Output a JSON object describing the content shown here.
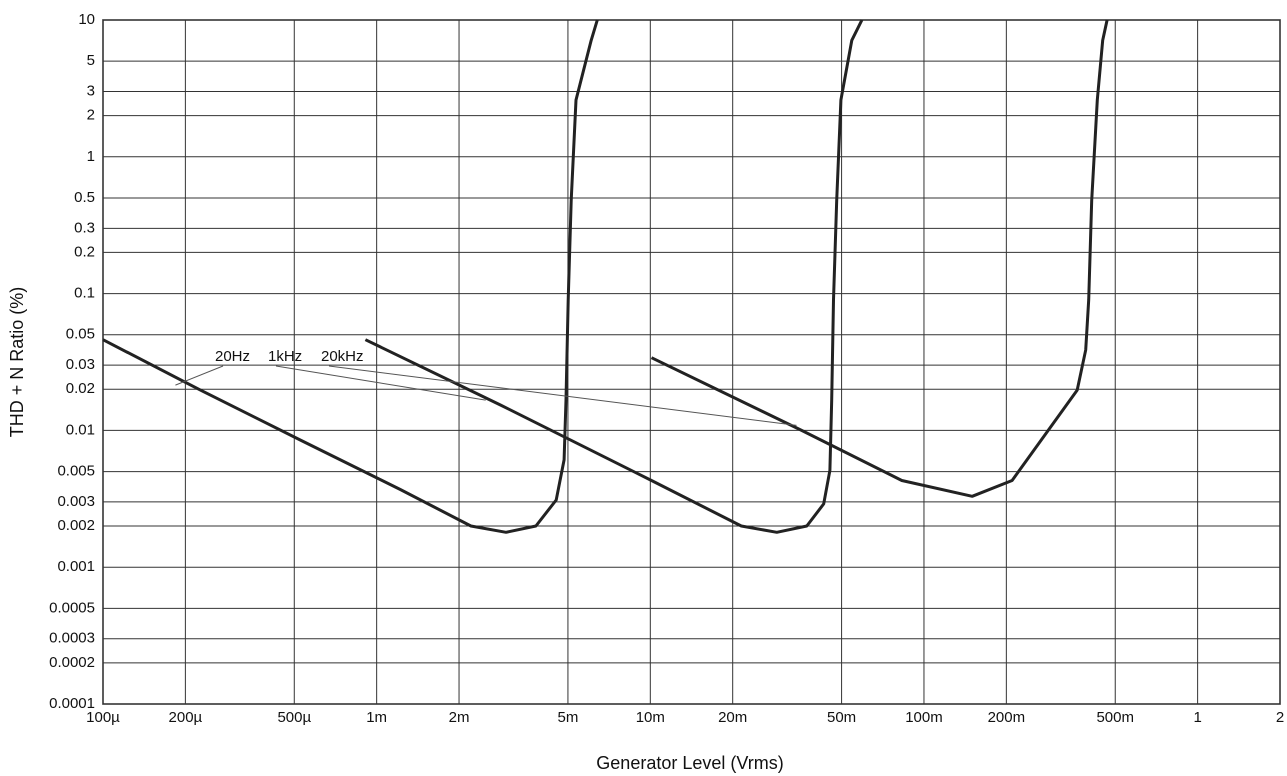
{
  "chart_data": {
    "type": "line",
    "x_label": "Generator Level (Vrms)",
    "y_label": "THD + N Ratio (%)",
    "x_scale": "log",
    "y_scale": "log",
    "grid": true,
    "xlim": [
      0.0001,
      2
    ],
    "ylim": [
      0.0001,
      10
    ],
    "xticks": [
      {
        "value": 0.0001,
        "label": "100µ"
      },
      {
        "value": 0.0002,
        "label": "200µ"
      },
      {
        "value": 0.0005,
        "label": "500µ"
      },
      {
        "value": 0.001,
        "label": "1m"
      },
      {
        "value": 0.002,
        "label": "2m"
      },
      {
        "value": 0.005,
        "label": "5m"
      },
      {
        "value": 0.01,
        "label": "10m"
      },
      {
        "value": 0.02,
        "label": "20m"
      },
      {
        "value": 0.05,
        "label": "50m"
      },
      {
        "value": 0.1,
        "label": "100m"
      },
      {
        "value": 0.2,
        "label": "200m"
      },
      {
        "value": 0.5,
        "label": "500m"
      },
      1,
      2
    ],
    "yticks": [
      0.0001,
      0.0002,
      0.0003,
      0.0005,
      0.001,
      0.002,
      0.003,
      0.005,
      0.01,
      0.02,
      0.03,
      0.05,
      0.1,
      0.2,
      0.3,
      0.5,
      1,
      2,
      3,
      5,
      10
    ],
    "series": [
      {
        "name": "20Hz",
        "color": "#222222",
        "x": [
          0.0001,
          0.000227,
          0.000527,
          0.00122,
          0.00221,
          0.00297,
          0.00382,
          0.00453,
          0.00484,
          0.00492,
          0.00501,
          0.00514,
          0.00535,
          0.00608,
          0.0064
        ],
        "values": [
          0.046,
          0.0197,
          0.0085,
          0.0037,
          0.002,
          0.0018,
          0.002,
          0.0031,
          0.0061,
          0.0167,
          0.09,
          0.48,
          2.6,
          7.1,
          10
        ]
      },
      {
        "name": "1kHz",
        "color": "#222222",
        "x": [
          0.00091,
          0.00284,
          0.0101,
          0.0215,
          0.029,
          0.0373,
          0.043,
          0.0453,
          0.046,
          0.0467,
          0.048,
          0.0497,
          0.0545,
          0.0593
        ],
        "values": [
          0.046,
          0.0153,
          0.0043,
          0.002,
          0.0018,
          0.002,
          0.0029,
          0.0051,
          0.0167,
          0.09,
          0.48,
          2.6,
          7.1,
          10
        ]
      },
      {
        "name": "20kHz",
        "color": "#222222",
        "x": [
          0.0101,
          0.0357,
          0.083,
          0.15,
          0.21,
          0.363,
          0.39,
          0.4,
          0.41,
          0.43,
          0.45,
          0.467
        ],
        "values": [
          0.034,
          0.01,
          0.0043,
          0.0033,
          0.0043,
          0.0197,
          0.0387,
          0.09,
          0.48,
          2.6,
          7.1,
          10
        ]
      }
    ]
  }
}
